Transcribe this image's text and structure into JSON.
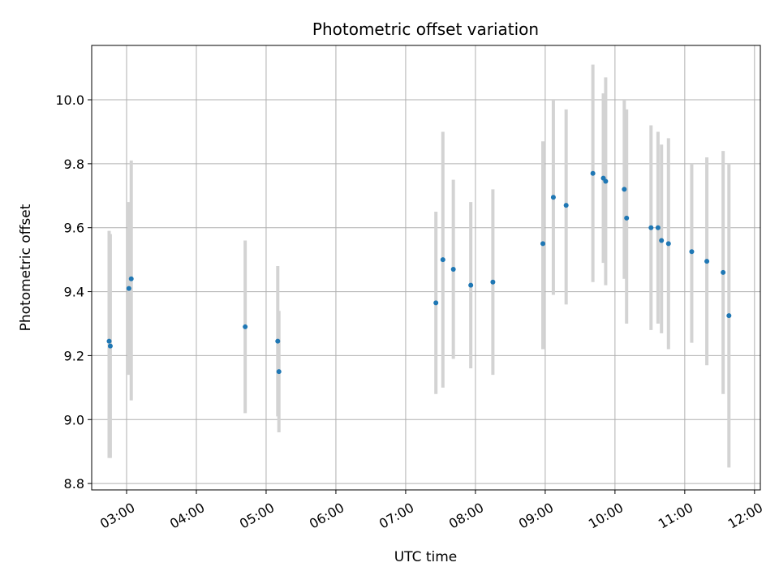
{
  "chart_data": {
    "type": "scatter",
    "title": "Photometric offset variation",
    "xlabel": "UTC time",
    "ylabel": "Photometric offset",
    "xlim": [
      "02:30",
      "12:05"
    ],
    "ylim": [
      8.78,
      10.17
    ],
    "grid": true,
    "x_ticks": [
      "03:00",
      "04:00",
      "05:00",
      "06:00",
      "07:00",
      "08:00",
      "09:00",
      "10:00",
      "11:00",
      "12:00"
    ],
    "y_ticks": [
      8.8,
      9.0,
      9.2,
      9.4,
      9.6,
      9.8,
      10.0
    ],
    "colors": {
      "point": "#1f77b4",
      "errorbar": "#d3d3d3",
      "grid": "#b0b0b0"
    },
    "series": [
      {
        "points": [
          {
            "x": "02:45",
            "y": 9.245,
            "lo": 8.88,
            "hi": 9.59
          },
          {
            "x": "02:46",
            "y": 9.23,
            "lo": 8.88,
            "hi": 9.58
          },
          {
            "x": "03:02",
            "y": 9.41,
            "lo": 9.14,
            "hi": 9.68
          },
          {
            "x": "03:04",
            "y": 9.44,
            "lo": 9.06,
            "hi": 9.81
          },
          {
            "x": "04:42",
            "y": 9.29,
            "lo": 9.02,
            "hi": 9.56
          },
          {
            "x": "05:10",
            "y": 9.245,
            "lo": 9.01,
            "hi": 9.48
          },
          {
            "x": "05:11",
            "y": 9.15,
            "lo": 8.96,
            "hi": 9.34
          },
          {
            "x": "07:26",
            "y": 9.365,
            "lo": 9.08,
            "hi": 9.65
          },
          {
            "x": "07:32",
            "y": 9.5,
            "lo": 9.1,
            "hi": 9.9
          },
          {
            "x": "07:41",
            "y": 9.47,
            "lo": 9.19,
            "hi": 9.75
          },
          {
            "x": "07:56",
            "y": 9.42,
            "lo": 9.16,
            "hi": 9.68
          },
          {
            "x": "08:15",
            "y": 9.43,
            "lo": 9.14,
            "hi": 9.72
          },
          {
            "x": "08:58",
            "y": 9.55,
            "lo": 9.22,
            "hi": 9.87
          },
          {
            "x": "09:07",
            "y": 9.695,
            "lo": 9.39,
            "hi": 10.0
          },
          {
            "x": "09:18",
            "y": 9.67,
            "lo": 9.36,
            "hi": 9.97
          },
          {
            "x": "09:41",
            "y": 9.77,
            "lo": 9.43,
            "hi": 10.11
          },
          {
            "x": "09:50",
            "y": 9.755,
            "lo": 9.49,
            "hi": 10.02
          },
          {
            "x": "09:52",
            "y": 9.745,
            "lo": 9.42,
            "hi": 10.07
          },
          {
            "x": "10:08",
            "y": 9.72,
            "lo": 9.44,
            "hi": 10.0
          },
          {
            "x": "10:10",
            "y": 9.63,
            "lo": 9.3,
            "hi": 9.97
          },
          {
            "x": "10:31",
            "y": 9.6,
            "lo": 9.28,
            "hi": 9.92
          },
          {
            "x": "10:37",
            "y": 9.6,
            "lo": 9.3,
            "hi": 9.9
          },
          {
            "x": "10:40",
            "y": 9.56,
            "lo": 9.27,
            "hi": 9.86
          },
          {
            "x": "10:46",
            "y": 9.55,
            "lo": 9.22,
            "hi": 9.88
          },
          {
            "x": "11:06",
            "y": 9.525,
            "lo": 9.24,
            "hi": 9.8
          },
          {
            "x": "11:19",
            "y": 9.495,
            "lo": 9.17,
            "hi": 9.82
          },
          {
            "x": "11:33",
            "y": 9.46,
            "lo": 9.08,
            "hi": 9.84
          },
          {
            "x": "11:38",
            "y": 9.325,
            "lo": 8.85,
            "hi": 9.8
          }
        ]
      }
    ]
  }
}
